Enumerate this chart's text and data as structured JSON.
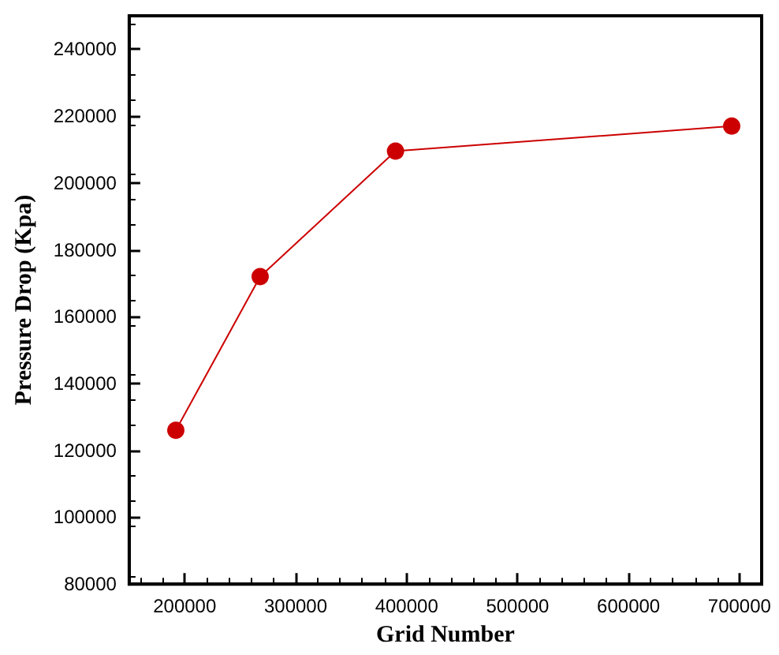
{
  "chart_data": {
    "type": "line",
    "xlabel": "Grid Number",
    "ylabel": "Pressure Drop (Kpa)",
    "x": [
      192000,
      268000,
      390000,
      693000
    ],
    "series": [
      {
        "color": "#cc0000",
        "values": [
          126000,
          172000,
          209500,
          217000
        ]
      }
    ],
    "xlim": [
      150000,
      720000
    ],
    "xticks": [
      200000,
      300000,
      400000,
      500000,
      600000,
      700000
    ],
    "ylim": [
      80000,
      250000
    ],
    "yticks": [
      80000,
      100000,
      120000,
      140000,
      160000,
      180000,
      200000,
      220000,
      240000
    ],
    "marker": "circle",
    "line_style": "solid",
    "grid": false
  }
}
